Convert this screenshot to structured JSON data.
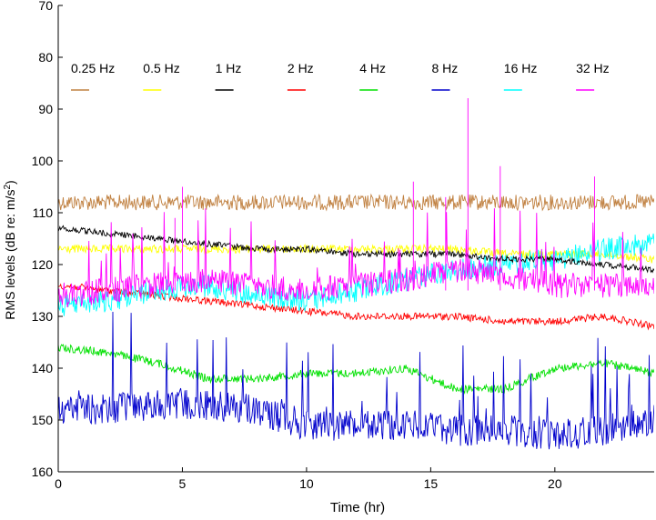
{
  "chart_data": {
    "type": "line",
    "xlabel": "Time (hr)",
    "ylabel_main": "RMS levels (dB re: m/s",
    "ylabel_sup": "2",
    "ylabel_tail": ")",
    "xlim": [
      0,
      24
    ],
    "ylim": [
      70,
      160
    ],
    "y_inverted": true,
    "x_ticks": [
      0,
      5,
      10,
      15,
      20
    ],
    "y_ticks": [
      70,
      80,
      90,
      100,
      110,
      120,
      130,
      140,
      150,
      160
    ],
    "grid": false,
    "legend_position": "top, horizontal row inside plot",
    "series": [
      {
        "name": "0.25 Hz",
        "color": "#c08040",
        "x": [
          0,
          2,
          4,
          6,
          8,
          10,
          12,
          14,
          16,
          18,
          20,
          22,
          24
        ],
        "y": [
          108,
          108,
          108,
          108,
          108,
          108,
          108,
          108,
          108,
          108,
          108,
          108,
          108
        ]
      },
      {
        "name": "0.5 Hz",
        "color": "#ffff00",
        "x": [
          0,
          2,
          4,
          6,
          8,
          10,
          12,
          14,
          16,
          18,
          20,
          22,
          24
        ],
        "y": [
          117,
          117,
          117,
          117,
          117,
          117,
          117,
          117,
          117,
          118,
          118,
          118,
          119
        ]
      },
      {
        "name": "1 Hz",
        "color": "#000000",
        "x": [
          0,
          2,
          4,
          6,
          8,
          10,
          12,
          14,
          16,
          18,
          20,
          22,
          24
        ],
        "y": [
          113,
          114,
          115,
          116,
          117,
          117,
          118,
          118,
          118,
          119,
          119,
          120,
          121
        ]
      },
      {
        "name": "2 Hz",
        "color": "#ff0000",
        "x": [
          0,
          2,
          4,
          6,
          8,
          10,
          12,
          14,
          16,
          18,
          20,
          22,
          24
        ],
        "y": [
          124,
          125,
          126,
          127,
          128,
          129,
          130,
          130,
          130,
          131,
          131,
          130,
          132
        ]
      },
      {
        "name": "4 Hz",
        "color": "#00e000",
        "x": [
          0,
          2,
          4,
          6,
          8,
          10,
          12,
          14,
          16,
          18,
          20,
          22,
          24
        ],
        "y": [
          136,
          137,
          139,
          142,
          142,
          141,
          141,
          140,
          144,
          144,
          140,
          139,
          141
        ]
      },
      {
        "name": "8 Hz",
        "color": "#0000cc",
        "x": [
          0,
          2,
          4,
          6,
          8,
          10,
          12,
          14,
          16,
          18,
          20,
          22,
          24
        ],
        "y": [
          148,
          148,
          147,
          147,
          148,
          151,
          151,
          151,
          152,
          152,
          153,
          152,
          150
        ]
      },
      {
        "name": "16 Hz",
        "color": "#00ffff",
        "x": [
          0,
          2,
          4,
          6,
          8,
          10,
          12,
          14,
          16,
          18,
          20,
          22,
          24
        ],
        "y": [
          128,
          127,
          125,
          124,
          126,
          127,
          125,
          123,
          121,
          120,
          119,
          117,
          116
        ]
      },
      {
        "name": "32 Hz",
        "color": "#ff00ff",
        "x": [
          0,
          2,
          4,
          6,
          8,
          10,
          12,
          14,
          16,
          18,
          20,
          22,
          24
        ],
        "y": [
          126,
          125,
          124,
          123,
          124,
          125,
          124,
          123,
          121,
          122,
          124,
          124,
          124
        ]
      }
    ],
    "spikes_32hz": [
      {
        "x": 5.0,
        "y": 105
      },
      {
        "x": 4.7,
        "y": 111
      },
      {
        "x": 14.3,
        "y": 104
      },
      {
        "x": 15.6,
        "y": 107
      },
      {
        "x": 16.5,
        "y": 87
      },
      {
        "x": 17.8,
        "y": 101
      },
      {
        "x": 21.6,
        "y": 103
      }
    ]
  }
}
